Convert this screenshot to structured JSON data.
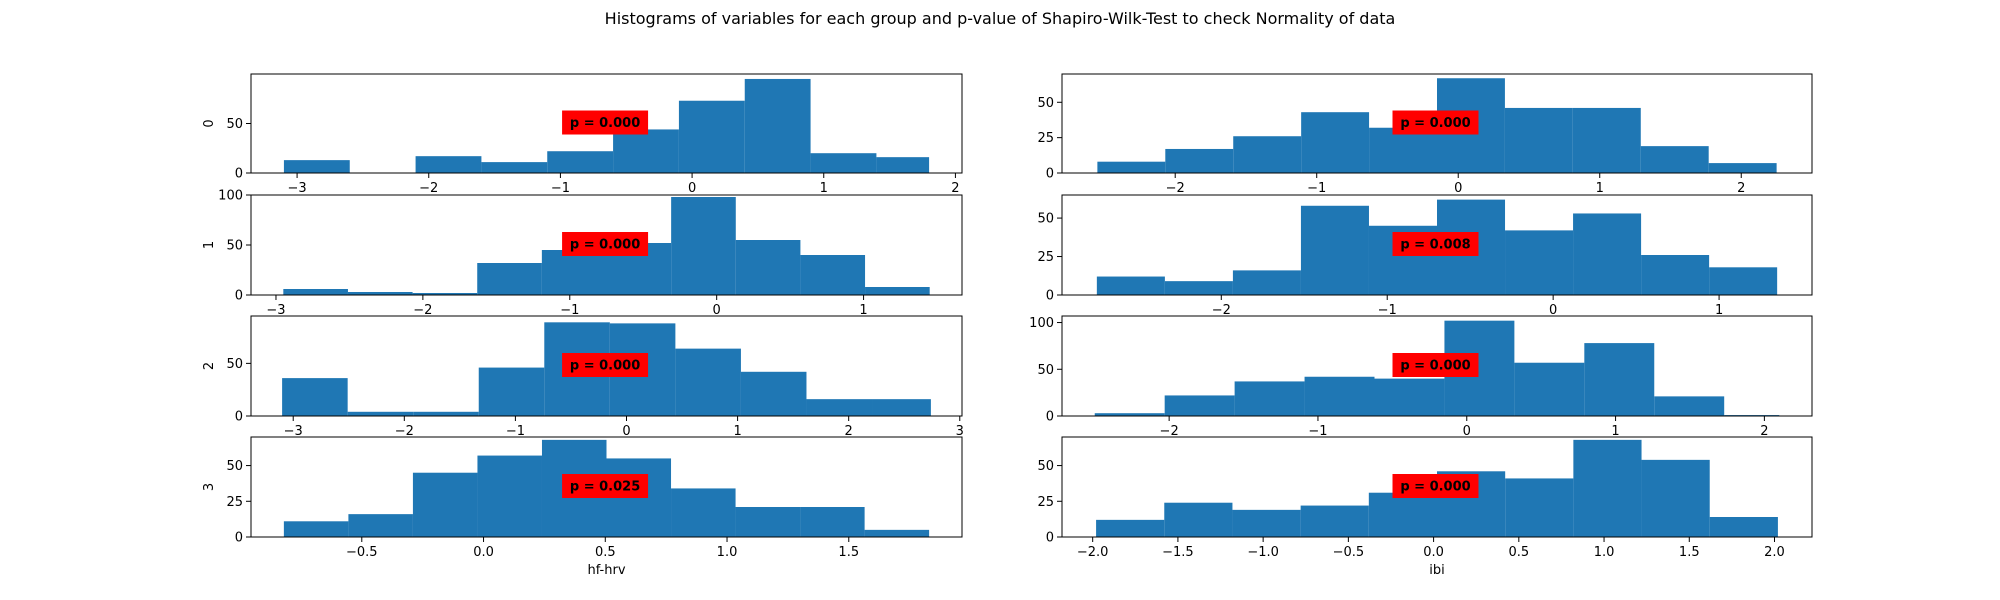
{
  "suptitle": "Histograms of variables for each group and p-value of Shapiro-Wilk-Test to check Normality of data",
  "colors": {
    "bar": "#1f77b4",
    "pbox": "#ff0000",
    "text": "#000000"
  },
  "chart_data": [
    {
      "type": "bar",
      "column": "hf-hrv",
      "group_label": "0",
      "xlabel": "",
      "p_label": "p = 0.000",
      "bin_edges": [
        -3.1,
        -2.6,
        -2.1,
        -1.6,
        -1.1,
        -0.6,
        -0.1,
        0.4,
        0.9,
        1.4,
        1.8
      ],
      "values": [
        13,
        0,
        17,
        11,
        22,
        44,
        73,
        95,
        20,
        16
      ],
      "xlim": [
        -3.35,
        2.05
      ],
      "ylim": [
        0,
        100
      ],
      "xticks": [
        -3,
        -2,
        -1,
        0,
        1,
        2
      ],
      "xtick_labels": [
        "−3",
        "−2",
        "−1",
        "0",
        "1",
        "2"
      ],
      "yticks": [
        0,
        50
      ],
      "ytick_labels": [
        "0",
        "50"
      ]
    },
    {
      "type": "bar",
      "column": "ibi",
      "group_label": "",
      "xlabel": "",
      "p_label": "p = 0.000",
      "bin_edges": [
        -2.55,
        -2.07,
        -1.59,
        -1.11,
        -0.63,
        -0.15,
        0.33,
        0.81,
        1.29,
        1.77,
        2.25
      ],
      "values": [
        8,
        17,
        26,
        43,
        32,
        67,
        46,
        46,
        19,
        7
      ],
      "xlim": [
        -2.8,
        2.5
      ],
      "ylim": [
        0,
        70
      ],
      "xticks": [
        -2,
        -1,
        0,
        1,
        2
      ],
      "xtick_labels": [
        "−2",
        "−1",
        "0",
        "1",
        "2"
      ],
      "yticks": [
        0,
        25,
        50
      ],
      "ytick_labels": [
        "0",
        "25",
        "50"
      ]
    },
    {
      "type": "bar",
      "column": "hf-hrv",
      "group_label": "1",
      "xlabel": "",
      "p_label": "p = 0.000",
      "bin_edges": [
        -2.95,
        -2.51,
        -2.07,
        -1.63,
        -1.19,
        -0.75,
        -0.31,
        0.13,
        0.57,
        1.01,
        1.45
      ],
      "values": [
        6,
        3,
        2,
        32,
        45,
        52,
        98,
        55,
        40,
        8
      ],
      "xlim": [
        -3.17,
        1.67
      ],
      "ylim": [
        0,
        100
      ],
      "xticks": [
        -3,
        -2,
        -1,
        0,
        1
      ],
      "xtick_labels": [
        "−3",
        "−2",
        "−1",
        "0",
        "1"
      ],
      "yticks": [
        0,
        50,
        100
      ],
      "ytick_labels": [
        "0",
        "50",
        "100"
      ]
    },
    {
      "type": "bar",
      "column": "ibi",
      "group_label": "",
      "xlabel": "",
      "p_label": "p = 0.008",
      "bin_edges": [
        -2.75,
        -2.34,
        -1.93,
        -1.52,
        -1.11,
        -0.7,
        -0.29,
        0.12,
        0.53,
        0.94,
        1.35
      ],
      "values": [
        12,
        9,
        16,
        58,
        45,
        62,
        42,
        53,
        26,
        18
      ],
      "xlim": [
        -2.96,
        1.56
      ],
      "ylim": [
        0,
        65
      ],
      "xticks": [
        -2,
        -1,
        0,
        1
      ],
      "xtick_labels": [
        "−2",
        "−1",
        "0",
        "1"
      ],
      "yticks": [
        0,
        25,
        50
      ],
      "ytick_labels": [
        "0",
        "25",
        "50"
      ]
    },
    {
      "type": "bar",
      "column": "hf-hrv",
      "group_label": "2",
      "xlabel": "",
      "p_label": "p = 0.000",
      "bin_edges": [
        -3.1,
        -2.51,
        -1.92,
        -1.33,
        -0.74,
        -0.15,
        0.44,
        1.03,
        1.62,
        2.21,
        2.74
      ],
      "values": [
        36,
        4,
        4,
        46,
        89,
        88,
        64,
        42,
        16,
        16
      ],
      "xlim": [
        -3.38,
        3.02
      ],
      "ylim": [
        0,
        95
      ],
      "xticks": [
        -3,
        -2,
        -1,
        0,
        1,
        2,
        3
      ],
      "xtick_labels": [
        "−3",
        "−2",
        "−1",
        "0",
        "1",
        "2",
        "3"
      ],
      "yticks": [
        0,
        50
      ],
      "ytick_labels": [
        "0",
        "50"
      ]
    },
    {
      "type": "bar",
      "column": "ibi",
      "group_label": "",
      "xlabel": "",
      "p_label": "p = 0.000",
      "bin_edges": [
        -2.5,
        -2.03,
        -1.56,
        -1.09,
        -0.62,
        -0.15,
        0.32,
        0.79,
        1.26,
        1.73,
        2.1
      ],
      "values": [
        3,
        22,
        37,
        42,
        40,
        102,
        57,
        78,
        21,
        1
      ],
      "xlim": [
        -2.72,
        2.32
      ],
      "ylim": [
        0,
        107
      ],
      "xticks": [
        -2,
        -1,
        0,
        1,
        2
      ],
      "xtick_labels": [
        "−2",
        "−1",
        "0",
        "1",
        "2"
      ],
      "yticks": [
        0,
        50,
        100
      ],
      "ytick_labels": [
        "0",
        "50",
        "100"
      ]
    },
    {
      "type": "bar",
      "column": "hf-hrv",
      "group_label": "3",
      "xlabel": "hf-hrv",
      "p_label": "p = 0.025",
      "bin_edges": [
        -0.82,
        -0.555,
        -0.29,
        -0.025,
        0.24,
        0.505,
        0.77,
        1.035,
        1.3,
        1.565,
        1.83
      ],
      "values": [
        11,
        16,
        45,
        57,
        68,
        55,
        34,
        21,
        21,
        5
      ],
      "xlim": [
        -0.955,
        1.965
      ],
      "ylim": [
        0,
        70
      ],
      "xticks": [
        -0.5,
        0.0,
        0.5,
        1.0,
        1.5
      ],
      "xtick_labels": [
        "−0.5",
        "0.0",
        "0.5",
        "1.0",
        "1.5"
      ],
      "yticks": [
        0,
        25,
        50
      ],
      "ytick_labels": [
        "0",
        "25",
        "50"
      ]
    },
    {
      "type": "bar",
      "column": "ibi",
      "group_label": "",
      "xlabel": "ibi",
      "p_label": "p = 0.000",
      "bin_edges": [
        -1.98,
        -1.58,
        -1.18,
        -0.78,
        -0.38,
        0.02,
        0.42,
        0.82,
        1.22,
        1.62,
        2.02
      ],
      "values": [
        12,
        24,
        19,
        22,
        31,
        46,
        41,
        68,
        54,
        14
      ],
      "xlim": [
        -2.18,
        2.22
      ],
      "ylim": [
        0,
        70
      ],
      "xticks": [
        -2.0,
        -1.5,
        -1.0,
        -0.5,
        0.0,
        0.5,
        1.0,
        1.5,
        2.0
      ],
      "xtick_labels": [
        "−2.0",
        "−1.5",
        "−1.0",
        "−0.5",
        "0.0",
        "0.5",
        "1.0",
        "1.5",
        "2.0"
      ],
      "yticks": [
        0,
        25,
        50
      ],
      "ytick_labels": [
        "0",
        "25",
        "50"
      ]
    }
  ]
}
